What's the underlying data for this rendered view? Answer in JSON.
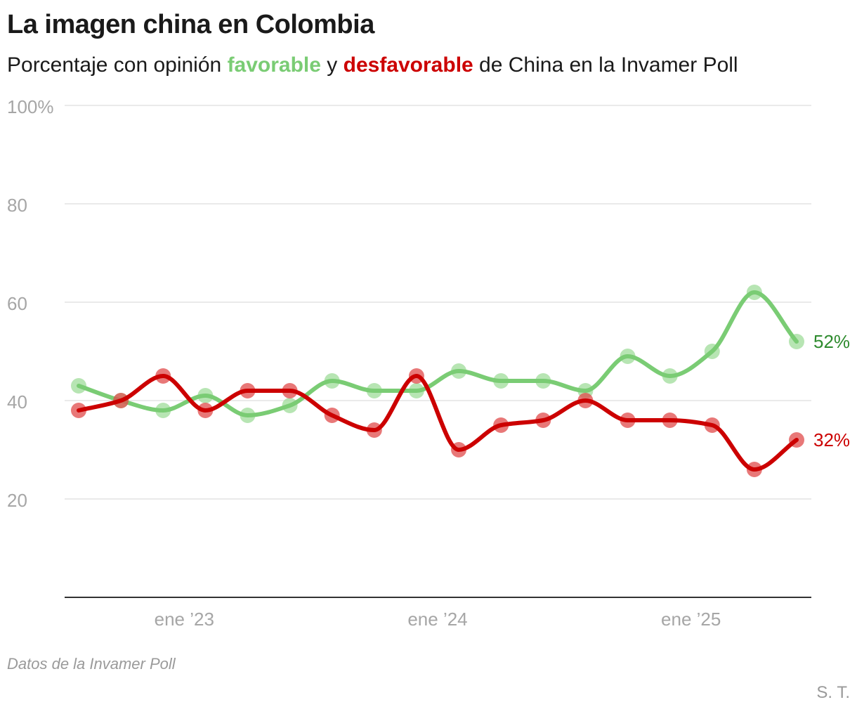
{
  "header": {
    "title": "La imagen china en Colombia",
    "subtitle_pre": "Porcentaje con opinión ",
    "subtitle_fav": "favorable",
    "subtitle_mid": " y ",
    "subtitle_desf": "desfavorable",
    "subtitle_post": " de China en la Invamer Poll"
  },
  "footer": {
    "source": "Datos de la Invamer Poll",
    "credit": "S. T."
  },
  "colors": {
    "favorable_line": "#7acc74",
    "favorable_dot": "#9fdc99",
    "favorable_label": "#2e8b2e",
    "desfavorable_line": "#cc0000",
    "desfavorable_dot": "#e04b4b",
    "desfavorable_label": "#cc0000",
    "grid": "#e3e3e3",
    "axis": "#333333"
  },
  "chart_data": {
    "type": "line",
    "title": "La imagen china en Colombia",
    "xlabel": "",
    "ylabel": "",
    "ylim": [
      0,
      100
    ],
    "yticks": [
      {
        "value": 20,
        "label": "20"
      },
      {
        "value": 40,
        "label": "40"
      },
      {
        "value": 60,
        "label": "60"
      },
      {
        "value": 80,
        "label": "80"
      },
      {
        "value": 100,
        "label": "100%"
      }
    ],
    "xticks": [
      {
        "index": 2.5,
        "label": "ene ’23"
      },
      {
        "index": 8.5,
        "label": "ene ’24"
      },
      {
        "index": 14.5,
        "label": "ene ’25"
      }
    ],
    "x": [
      0,
      1,
      2,
      3,
      4,
      5,
      6,
      7,
      8,
      9,
      10,
      11,
      12,
      13,
      14,
      15,
      16,
      17
    ],
    "grid": true,
    "series": [
      {
        "name": "favorable",
        "key": "fav",
        "end_label": "52%",
        "values": [
          43,
          40,
          38,
          41,
          37,
          39,
          44,
          42,
          42,
          46,
          44,
          44,
          42,
          49,
          45,
          50,
          62,
          52
        ]
      },
      {
        "name": "desfavorable",
        "key": "desf",
        "end_label": "32%",
        "values": [
          38,
          40,
          45,
          38,
          42,
          42,
          37,
          34,
          45,
          30,
          35,
          36,
          40,
          36,
          36,
          35,
          26,
          32
        ]
      }
    ]
  }
}
